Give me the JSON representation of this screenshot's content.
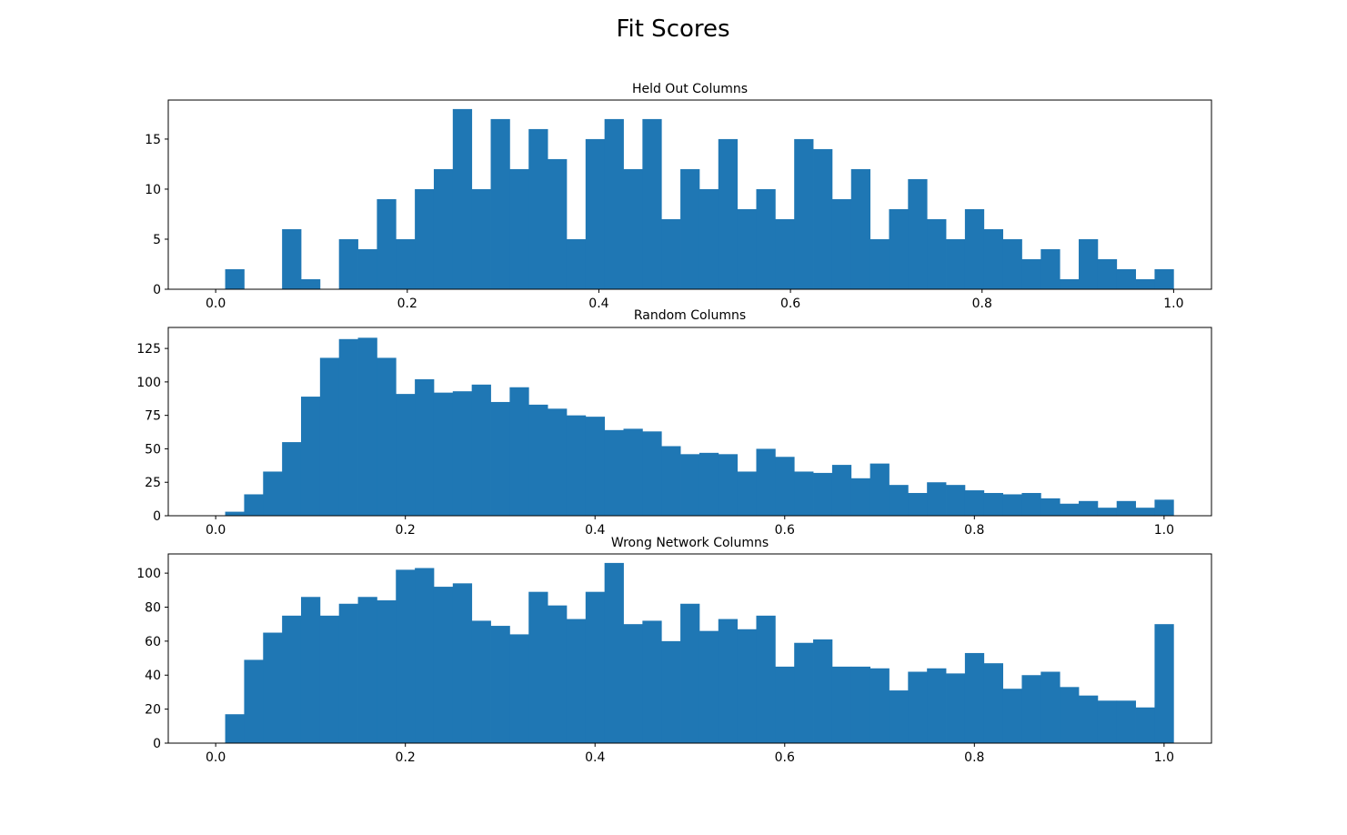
{
  "figure": {
    "title": "Fit Scores"
  },
  "style": {
    "bar_color": "#1f77b4"
  },
  "chart_data": [
    {
      "type": "bar",
      "title": "Held Out Columns",
      "xlabel": "",
      "ylabel": "",
      "grid": false,
      "legend": "none",
      "xlim": [
        -0.0495,
        1.0395
      ],
      "ylim": [
        0,
        18.9
      ],
      "xticks": [
        0.0,
        0.2,
        0.4,
        0.6,
        0.8,
        1.0
      ],
      "xtick_labels": [
        "0.0",
        "0.2",
        "0.4",
        "0.6",
        "0.8",
        "1.0"
      ],
      "yticks": [
        0,
        5,
        10,
        15
      ],
      "ytick_labels": [
        "0",
        "5",
        "10",
        "15"
      ],
      "bin_start": 0.0,
      "bin_end": 0.99,
      "values": [
        0,
        2,
        0,
        0,
        6,
        1,
        0,
        5,
        4,
        9,
        5,
        10,
        12,
        18,
        10,
        17,
        12,
        16,
        13,
        5,
        15,
        17,
        12,
        17,
        7,
        12,
        10,
        15,
        8,
        10,
        7,
        15,
        14,
        9,
        12,
        5,
        8,
        11,
        7,
        5,
        8,
        6,
        5,
        3,
        4,
        1,
        5,
        3,
        2,
        1,
        2
      ]
    },
    {
      "type": "bar",
      "title": "Random Columns",
      "xlabel": "",
      "ylabel": "",
      "grid": false,
      "legend": "none",
      "xlim": [
        -0.05,
        1.05
      ],
      "ylim": [
        0,
        140.7
      ],
      "xticks": [
        0.0,
        0.2,
        0.4,
        0.6,
        0.8,
        1.0
      ],
      "xtick_labels": [
        "0.0",
        "0.2",
        "0.4",
        "0.6",
        "0.8",
        "1.0"
      ],
      "yticks": [
        0,
        25,
        50,
        75,
        100,
        125
      ],
      "ytick_labels": [
        "0",
        "25",
        "50",
        "75",
        "100",
        "125"
      ],
      "bin_start": 0.0,
      "bin_end": 1.0,
      "values": [
        0,
        3,
        16,
        33,
        55,
        89,
        118,
        132,
        133,
        118,
        91,
        102,
        92,
        93,
        98,
        85,
        96,
        83,
        80,
        75,
        74,
        64,
        65,
        63,
        52,
        46,
        47,
        46,
        33,
        50,
        44,
        33,
        32,
        38,
        28,
        39,
        23,
        17,
        25,
        23,
        19,
        17,
        16,
        17,
        13,
        9,
        11,
        6,
        11,
        6,
        12
      ]
    },
    {
      "type": "bar",
      "title": "Wrong Network Columns",
      "xlabel": "",
      "ylabel": "",
      "grid": false,
      "legend": "none",
      "xlim": [
        -0.05,
        1.05
      ],
      "ylim": [
        0,
        111.3
      ],
      "xticks": [
        0.0,
        0.2,
        0.4,
        0.6,
        0.8,
        1.0
      ],
      "xtick_labels": [
        "0.0",
        "0.2",
        "0.4",
        "0.6",
        "0.8",
        "1.0"
      ],
      "yticks": [
        0,
        20,
        40,
        60,
        80,
        100
      ],
      "ytick_labels": [
        "0",
        "20",
        "40",
        "60",
        "80",
        "100"
      ],
      "bin_start": 0.0,
      "bin_end": 1.0,
      "values": [
        0,
        17,
        49,
        65,
        75,
        86,
        75,
        82,
        86,
        84,
        102,
        103,
        92,
        94,
        72,
        69,
        64,
        89,
        81,
        73,
        89,
        106,
        70,
        72,
        60,
        82,
        66,
        73,
        67,
        75,
        45,
        59,
        61,
        45,
        45,
        44,
        31,
        42,
        44,
        41,
        53,
        47,
        32,
        40,
        42,
        33,
        28,
        25,
        25,
        21,
        70
      ]
    }
  ]
}
